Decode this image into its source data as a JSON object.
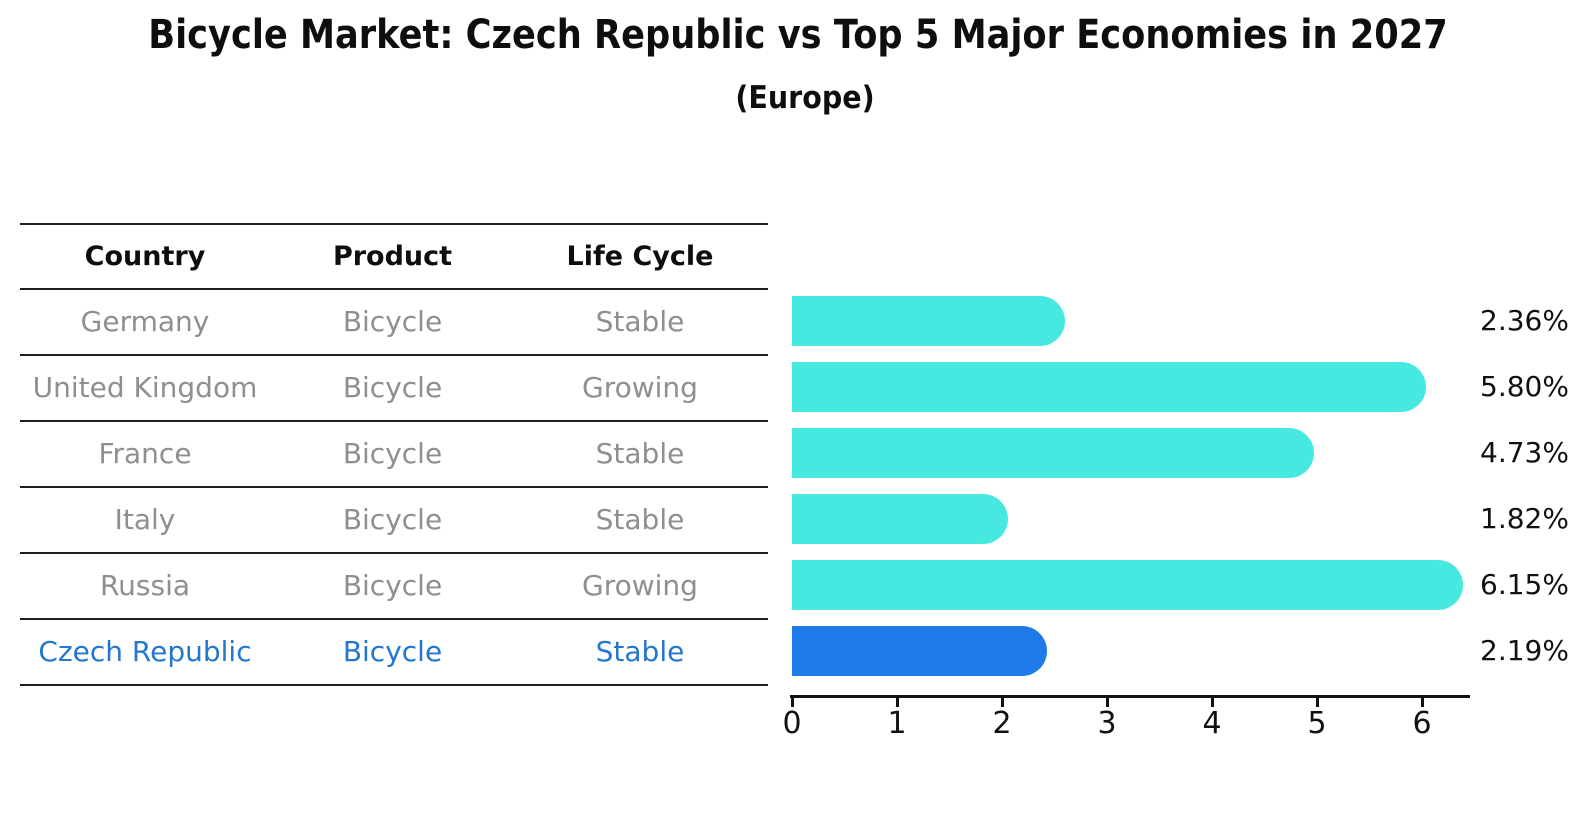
{
  "title": "Bicycle Market: Czech Republic vs Top 5 Major Economies in 2027",
  "subtitle": "(Europe)",
  "table": {
    "headers": {
      "country": "Country",
      "product": "Product",
      "life_cycle": "Life Cycle"
    },
    "rows": [
      {
        "country": "Germany",
        "product": "Bicycle",
        "life_cycle": "Stable",
        "highlight": false
      },
      {
        "country": "United Kingdom",
        "product": "Bicycle",
        "life_cycle": "Growing",
        "highlight": false
      },
      {
        "country": "France",
        "product": "Bicycle",
        "life_cycle": "Stable",
        "highlight": false
      },
      {
        "country": "Italy",
        "product": "Bicycle",
        "life_cycle": "Stable",
        "highlight": false
      },
      {
        "country": "Russia",
        "product": "Bicycle",
        "life_cycle": "Growing",
        "highlight": false
      },
      {
        "country": "Czech Republic",
        "product": "Bicycle",
        "life_cycle": "Stable",
        "highlight": true
      }
    ]
  },
  "chart_data": {
    "type": "bar",
    "orientation": "horizontal",
    "title": "Bicycle Market: Czech Republic vs Top 5 Major Economies in 2027 (Europe)",
    "categories": [
      "Germany",
      "United Kingdom",
      "France",
      "Italy",
      "Russia",
      "Czech Republic"
    ],
    "values": [
      2.36,
      5.8,
      4.73,
      1.82,
      6.15,
      2.19
    ],
    "value_labels": [
      "2.36%",
      "5.80%",
      "4.73%",
      "1.82%",
      "6.15%",
      "2.19%"
    ],
    "xlim": [
      0,
      6.46
    ],
    "xticks": [
      0,
      1,
      2,
      3,
      4,
      5,
      6
    ],
    "xtick_labels": [
      "0",
      "1",
      "2",
      "3",
      "4",
      "5",
      "6"
    ],
    "grid": false,
    "legend": false,
    "highlight_index": 5,
    "colors": {
      "bar": "#47E8E0",
      "highlight_bar": "#1E7AE8",
      "highlight_border": "#1E7AE8",
      "highlight_text": "#2577CE",
      "row_text": "#8F8F8F",
      "header_text": "#0E0E0E",
      "axis": "#111111"
    }
  }
}
